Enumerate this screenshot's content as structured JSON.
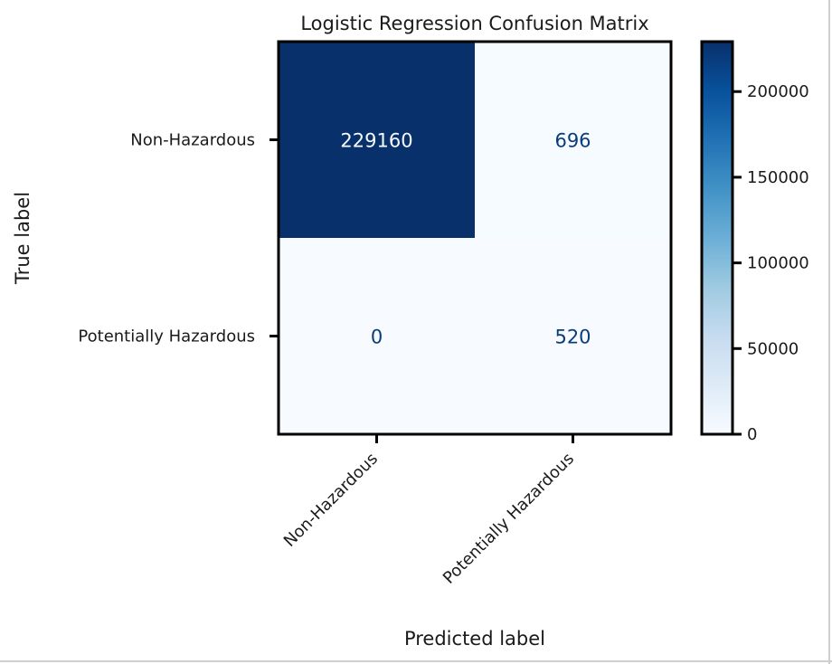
{
  "chart_data": {
    "type": "heatmap",
    "title": "Logistic Regression Confusion Matrix",
    "xlabel": "Predicted label",
    "ylabel": "True label",
    "x_categories": [
      "Non-Hazardous",
      "Potentially Hazardous"
    ],
    "y_categories": [
      "Non-Hazardous",
      "Potentially Hazardous"
    ],
    "values": [
      [
        229160,
        696
      ],
      [
        0,
        520
      ]
    ],
    "colormap": "Blues",
    "color_range": [
      0,
      229160
    ],
    "colorbar": {
      "ticks": [
        0,
        50000,
        100000,
        150000,
        200000
      ],
      "tick_labels": [
        "0",
        "50000",
        "100000",
        "150000",
        "200000"
      ]
    },
    "colors": {
      "low": "#f7fbff",
      "high": "#08306b",
      "text_on_dark": "#f7fbff",
      "text_on_light": "#0b3c7a"
    }
  }
}
